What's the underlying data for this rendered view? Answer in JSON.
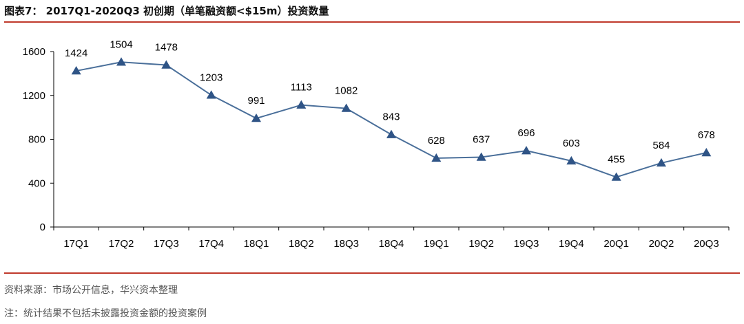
{
  "header": {
    "title": "图表7： 2017Q1-2020Q3 初创期（单笔融资额<$15m）投资数量"
  },
  "footer": {
    "source": "资料来源：市场公开信息，华兴资本整理",
    "note": "注：统计结果不包括未披露投资金额的投资案例"
  },
  "chart_data": {
    "type": "line",
    "categories": [
      "17Q1",
      "17Q2",
      "17Q3",
      "17Q4",
      "18Q1",
      "18Q2",
      "18Q3",
      "18Q4",
      "19Q1",
      "19Q2",
      "19Q3",
      "19Q4",
      "20Q1",
      "20Q2",
      "20Q3"
    ],
    "values": [
      1424,
      1504,
      1478,
      1203,
      991,
      1113,
      1082,
      843,
      628,
      637,
      696,
      603,
      455,
      584,
      678
    ],
    "ylim": [
      0,
      1600
    ],
    "yticks": [
      0,
      400,
      800,
      1200,
      1600
    ],
    "grid": false,
    "data_labels": true,
    "marker": "triangle",
    "colors": {
      "line": "#4a6f9a",
      "marker": "#2f5486",
      "axis": "#000000"
    }
  }
}
